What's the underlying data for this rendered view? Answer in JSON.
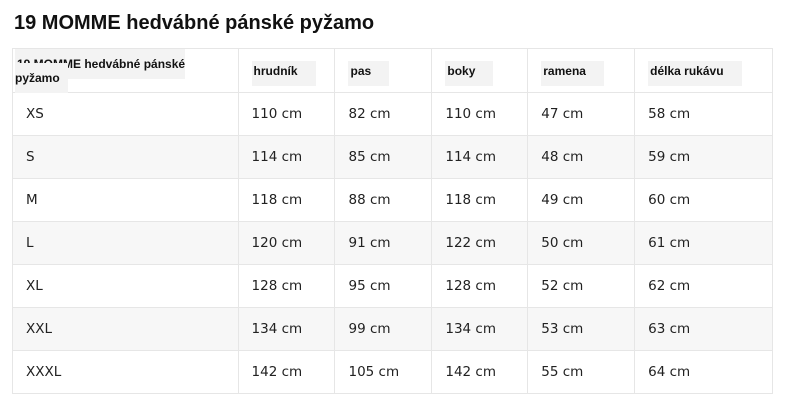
{
  "title": "19 MOMME hedvábné pánské pyžamo",
  "headers": [
    "19 MOMME hedvábné pánské pyžamo",
    "hrudník",
    "pas",
    "boky",
    "ramena",
    "délka rukávu"
  ],
  "rows": [
    [
      "XS",
      "110 cm",
      "82 cm",
      "110 cm",
      "47 cm",
      "58 cm"
    ],
    [
      "S",
      "114 cm",
      "85 cm",
      "114 cm",
      "48 cm",
      "59 cm"
    ],
    [
      "M",
      "118 cm",
      "88 cm",
      "118 cm",
      "49 cm",
      "60 cm"
    ],
    [
      "L",
      "120 cm",
      "91 cm",
      "122 cm",
      "50 cm",
      "61 cm"
    ],
    [
      "XL",
      "128 cm",
      "95 cm",
      "128 cm",
      "52 cm",
      "62 cm"
    ],
    [
      "XXL",
      "134 cm",
      "99 cm",
      "134 cm",
      "53 cm",
      "63 cm"
    ],
    [
      "XXXL",
      "142 cm",
      "105 cm",
      "142 cm",
      "55 cm",
      "64 cm"
    ]
  ]
}
